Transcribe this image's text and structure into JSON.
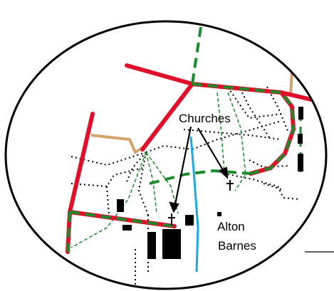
{
  "labels": {
    "churches": "Churches",
    "village_line1": "Alton",
    "village_line2": "Barnes"
  },
  "colors": {
    "main_road": "#e0102a",
    "footpath": "#1a8a2a",
    "track": "#d4a26a",
    "stream": "#1ea8e0",
    "building": "#000000",
    "boundary": "#000000"
  },
  "icons": [
    "church-cross-icon",
    "church-cross-icon"
  ]
}
